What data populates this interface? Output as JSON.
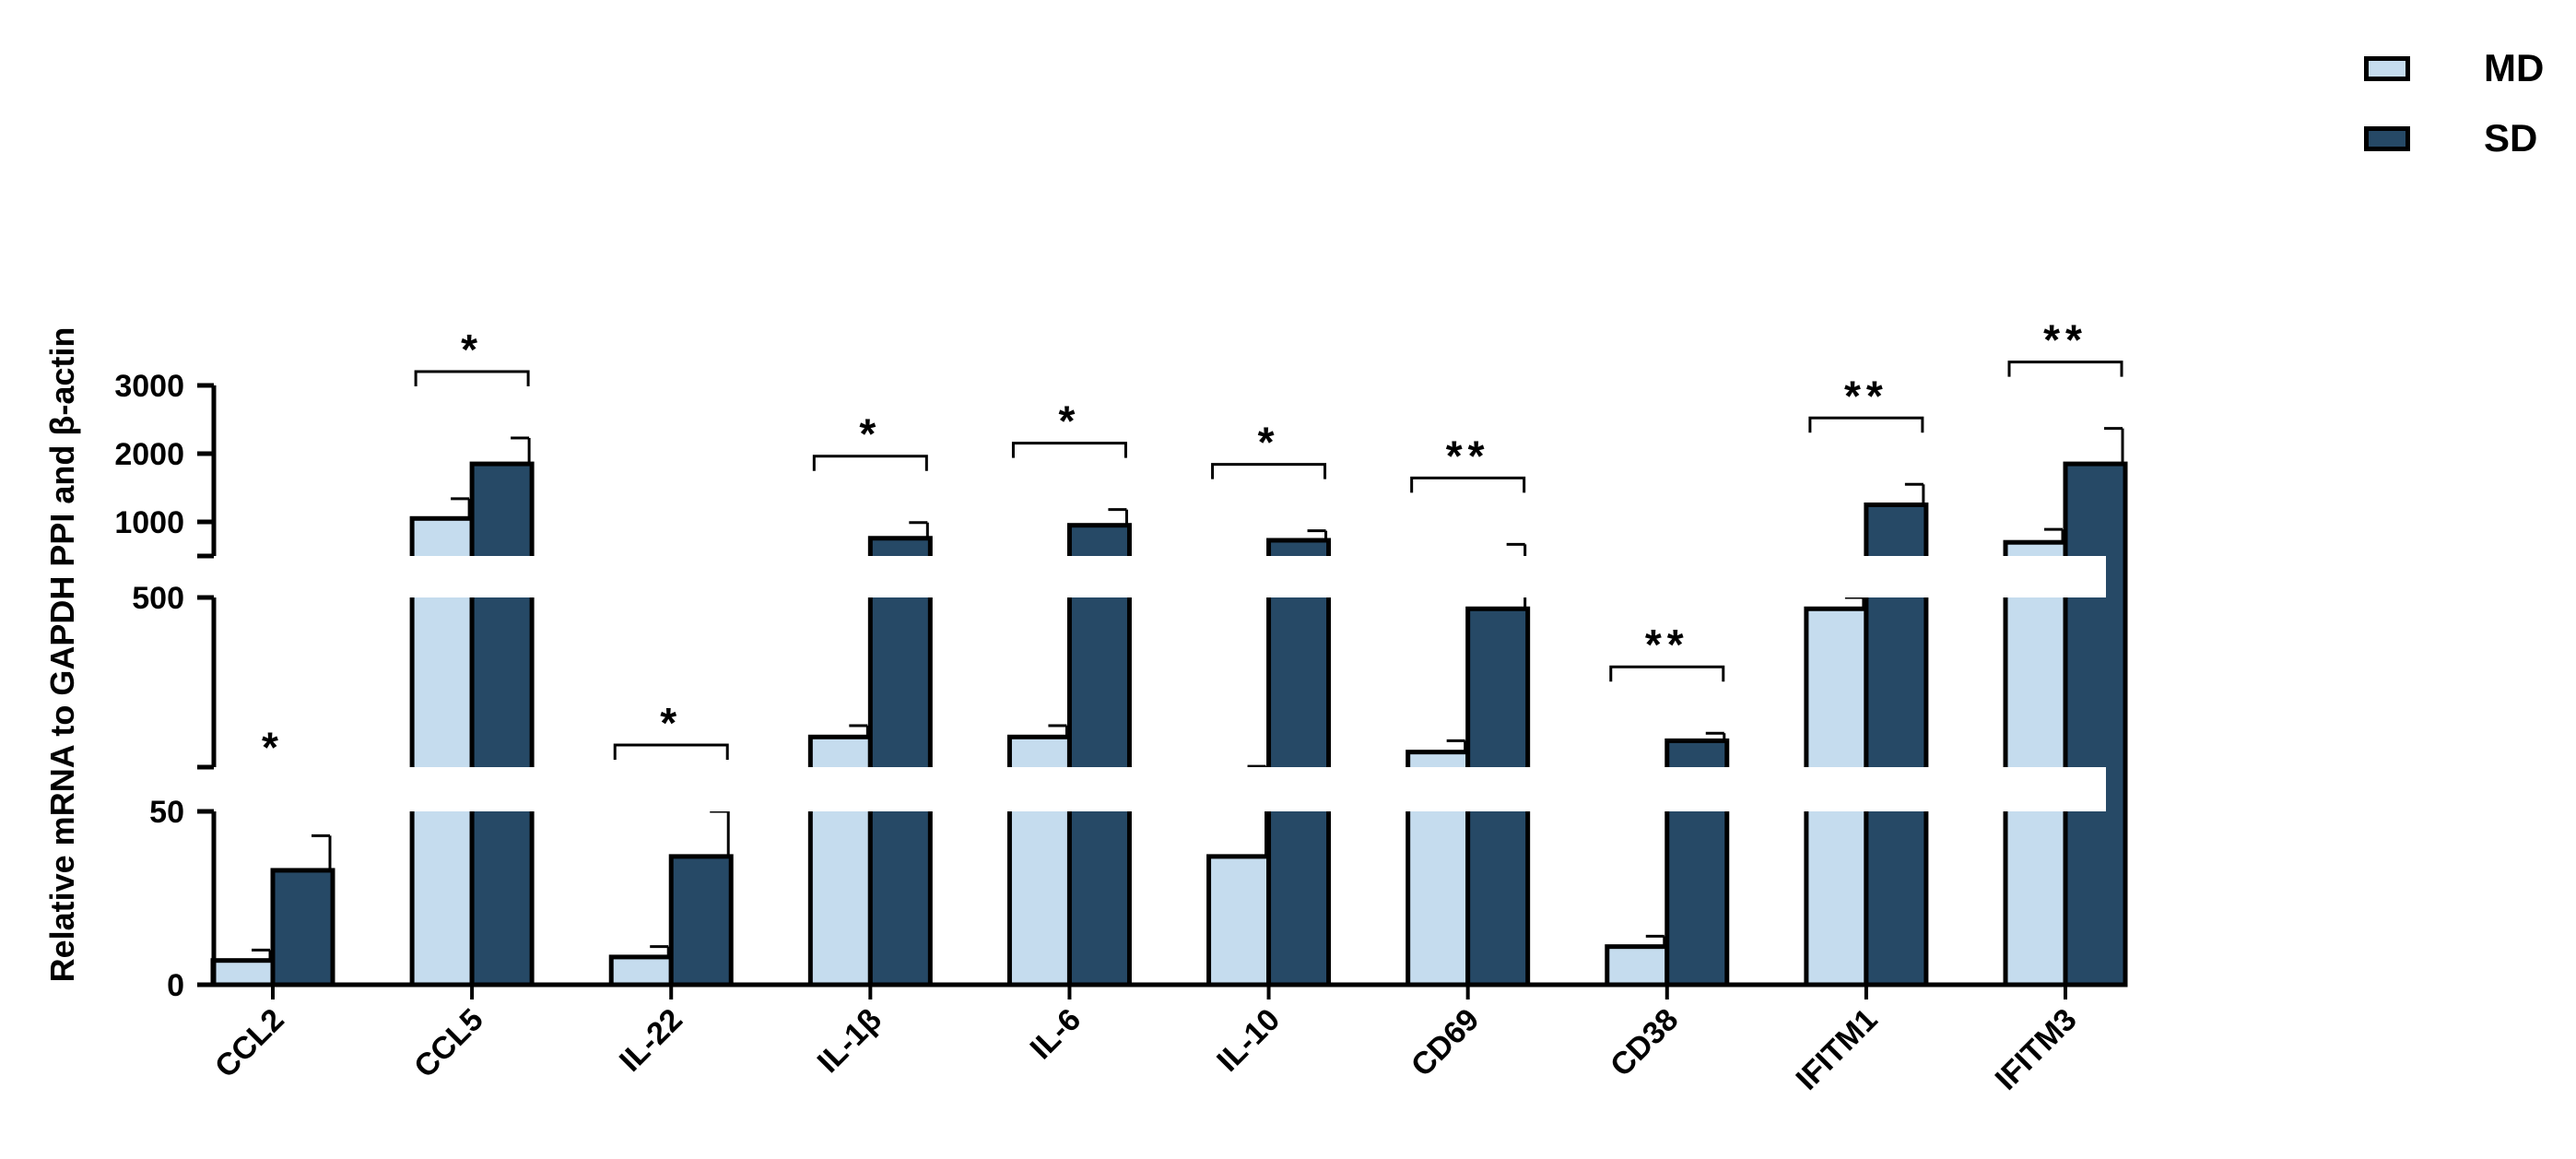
{
  "chart_data": {
    "type": "bar",
    "title": "",
    "xlabel": "",
    "ylabel": "Relative mRNA to GAPDH PPI and β-actin",
    "axis_segments": [
      {
        "range": [
          0,
          50
        ],
        "ticks": [
          "0",
          "50"
        ]
      },
      {
        "range": [
          50,
          500
        ],
        "ticks": [
          "",
          "500"
        ]
      },
      {
        "range": [
          500,
          3000
        ],
        "ticks": [
          "1000",
          "2000",
          "3000"
        ]
      }
    ],
    "categories": [
      "CCL2",
      "CCL5",
      "IL-22",
      "IL-1β",
      "IL-6",
      "IL-10",
      "CD69",
      "CD38",
      "IFITM1",
      "IFITM3"
    ],
    "series": [
      {
        "name": "MD",
        "color": "#c5dcee",
        "values": [
          7,
          1050,
          8,
          130,
          130,
          37,
          90,
          11,
          470,
          700
        ],
        "errors": [
          3,
          290,
          3,
          30,
          30,
          15,
          30,
          3,
          30,
          190
        ]
      },
      {
        "name": "SD",
        "color": "#264966",
        "values": [
          33,
          1850,
          37,
          760,
          950,
          730,
          470,
          120,
          1250,
          1850
        ],
        "errors": [
          10,
          380,
          13,
          230,
          230,
          140,
          200,
          20,
          300,
          520
        ]
      }
    ],
    "significance": [
      "*",
      "*",
      "*",
      "*",
      "*",
      "*",
      "**",
      "**",
      "**",
      "**"
    ],
    "legend": {
      "position": "top-right",
      "entries": [
        "MD",
        "SD"
      ]
    }
  }
}
